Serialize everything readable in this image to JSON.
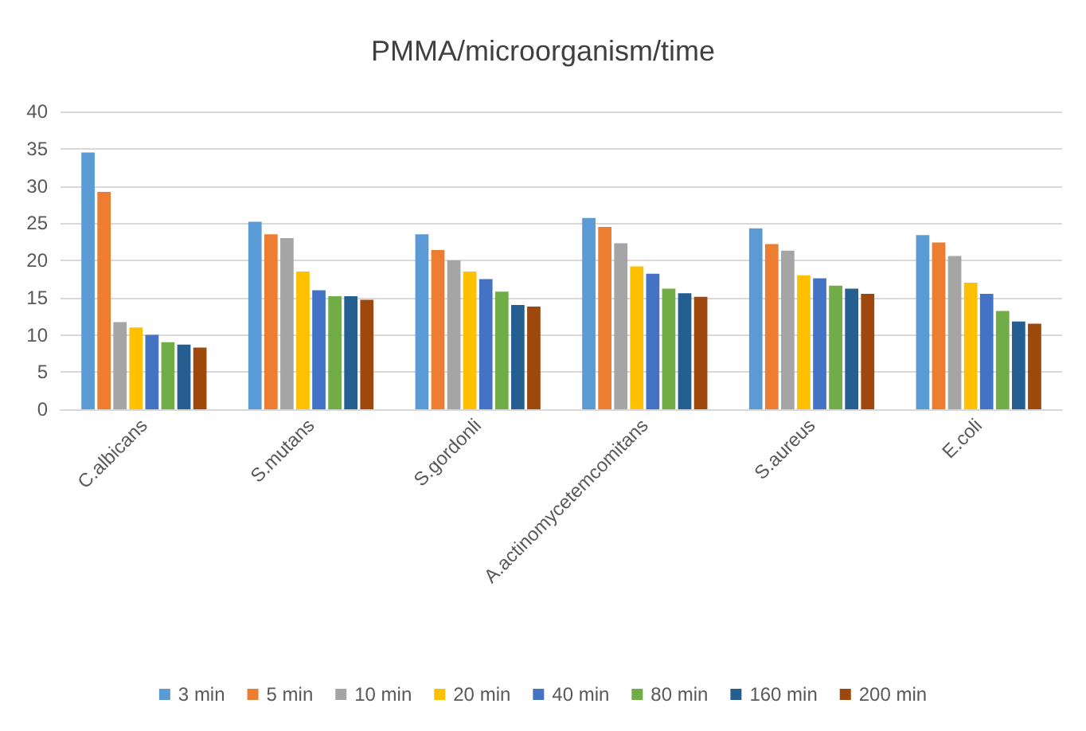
{
  "chart_data": {
    "type": "bar",
    "title": "PMMA/microorganism/time",
    "categories": [
      "C.albicans",
      "S.mutans",
      "S.gordonli",
      "A.actinomycetemcomitans",
      "S.aureus",
      "E.coli"
    ],
    "series": [
      {
        "name": "3 min",
        "color": "#5b9bd5",
        "values": [
          34.5,
          25.2,
          23.5,
          25.7,
          24.3,
          23.4
        ]
      },
      {
        "name": "5 min",
        "color": "#ed7d31",
        "values": [
          29.2,
          23.5,
          21.4,
          24.5,
          22.2,
          22.4
        ]
      },
      {
        "name": "10 min",
        "color": "#a5a5a5",
        "values": [
          11.7,
          23,
          20,
          22.3,
          21.3,
          20.6
        ]
      },
      {
        "name": "20 min",
        "color": "#ffc000",
        "values": [
          11,
          18.5,
          18.5,
          19.2,
          18,
          17
        ]
      },
      {
        "name": "40 min",
        "color": "#4472c4",
        "values": [
          10,
          16,
          17.5,
          18.2,
          17.6,
          15.5
        ]
      },
      {
        "name": "80 min",
        "color": "#70ad47",
        "values": [
          9,
          15.2,
          15.8,
          16.2,
          16.6,
          13.2
        ]
      },
      {
        "name": "160 min",
        "color": "#255e91",
        "values": [
          8.7,
          15.2,
          14,
          15.6,
          16.2,
          11.8
        ]
      },
      {
        "name": "200 min",
        "color": "#9e480e",
        "values": [
          8.3,
          14.7,
          13.8,
          15.1,
          15.5,
          11.5
        ]
      }
    ],
    "ylim": [
      0,
      40
    ],
    "yticks": [
      0,
      5,
      10,
      15,
      20,
      25,
      30,
      35,
      40
    ],
    "grid": "y",
    "legend": "bottom"
  }
}
